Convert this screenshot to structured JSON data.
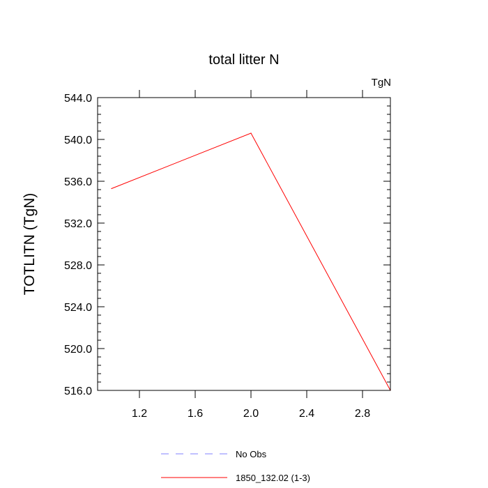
{
  "chart_data": {
    "type": "line",
    "title": "total litter N",
    "units_label": "TgN",
    "ylabel": "TOTLITN  (TgN)",
    "xlabel": "",
    "xlim": [
      0.9,
      3.0
    ],
    "ylim": [
      516.0,
      544.0
    ],
    "x_ticks": [
      1.2,
      1.6,
      2.0,
      2.4,
      2.8
    ],
    "x_tick_labels": [
      "1.2",
      "1.6",
      "2.0",
      "2.4",
      "2.8"
    ],
    "y_ticks": [
      516.0,
      520.0,
      524.0,
      528.0,
      532.0,
      536.0,
      540.0,
      544.0
    ],
    "y_tick_labels": [
      "516.0",
      "520.0",
      "524.0",
      "528.0",
      "532.0",
      "536.0",
      "540.0",
      "544.0"
    ],
    "grid": false,
    "legend_position": "bottom",
    "series": [
      {
        "name": "1850_132.02 (1-3)",
        "color": "#ff0000",
        "dash": "solid",
        "x": [
          1.0,
          2.0,
          3.0
        ],
        "y": [
          535.3,
          540.6,
          516.0
        ]
      }
    ],
    "legend": [
      {
        "label": "No Obs",
        "color": "#8080ff",
        "dash": "dashed"
      },
      {
        "label": "1850_132.02 (1-3)",
        "color": "#ff0000",
        "dash": "solid"
      }
    ]
  }
}
